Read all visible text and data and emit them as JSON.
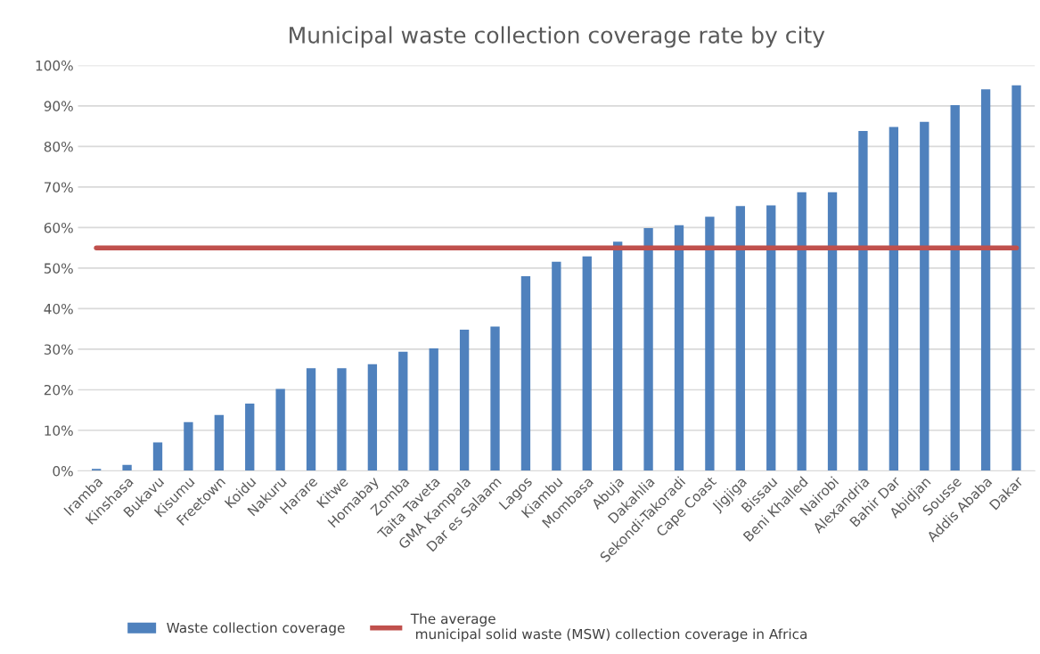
{
  "chart_data": {
    "type": "bar",
    "title": "Municipal waste collection coverage rate by city",
    "categories": [
      "Iramba",
      "Kinshasa",
      "Bukavu",
      "Kisumu",
      "Freetown",
      "Koidu",
      "Nakuru",
      "Harare",
      "Kitwe",
      "Homabay",
      "Zomba",
      "Taita Taveta",
      "GMA Kampala",
      "Dar es Salaam",
      "Lagos",
      "Kiambu",
      "Mombasa",
      "Abuja",
      "Dakahlia",
      "Sekondi-Takoradi",
      "Cape Coast",
      "Jigjiga",
      "Bissau",
      "Beni Khalled",
      "Nairobi",
      "Alexandria",
      "Bahir Dar",
      "Abidjan",
      "Sousse",
      "Addis Ababa",
      "Dakar"
    ],
    "series": [
      {
        "name": "Waste collection coverage",
        "color": "#4f81bd",
        "values": [
          0.5,
          1.5,
          7,
          12,
          13.8,
          16.6,
          20.2,
          25.3,
          25.3,
          26.3,
          29.4,
          30.2,
          34.8,
          35.6,
          48,
          51.6,
          52.9,
          56.5,
          59.9,
          60.6,
          62.7,
          65.3,
          65.5,
          68.7,
          68.7,
          83.8,
          84.8,
          86.1,
          90.2,
          94.1,
          95.1
        ]
      }
    ],
    "ref_lines": [
      {
        "axis": "y",
        "value": 55,
        "label": "The average\n municipal solid waste (MSW) collection coverage in Africa",
        "color": "#c0504d"
      }
    ],
    "ylim": [
      0,
      100
    ],
    "yticks": [
      {
        "value": 0,
        "label": "0%"
      },
      {
        "value": 10,
        "label": "10%"
      },
      {
        "value": 20,
        "label": "20%"
      },
      {
        "value": 30,
        "label": "30%"
      },
      {
        "value": 40,
        "label": "40%"
      },
      {
        "value": 50,
        "label": "50%"
      },
      {
        "value": 60,
        "label": "60%"
      },
      {
        "value": 70,
        "label": "70%"
      },
      {
        "value": 80,
        "label": "80%"
      },
      {
        "value": 90,
        "label": "90%"
      },
      {
        "value": 100,
        "label": "100%"
      }
    ],
    "grid": "y",
    "legend": "bottom"
  }
}
